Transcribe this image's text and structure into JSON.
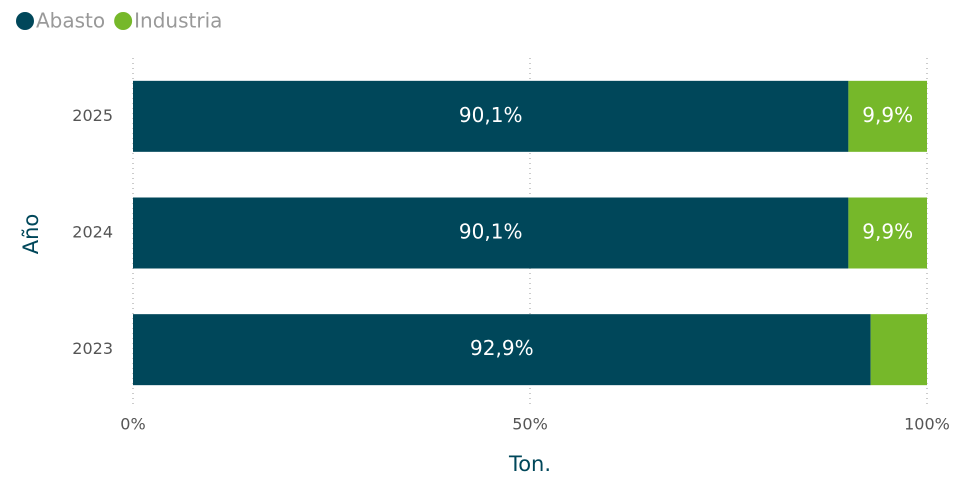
{
  "chart_data": {
    "type": "stacked-bar-horizontal",
    "x_label": "Ton.",
    "y_label": "Año",
    "categories": [
      "2025",
      "2024",
      "2023"
    ],
    "series": [
      {
        "name": "Abasto",
        "color": "#00475a",
        "values": [
          90.1,
          90.1,
          92.9
        ],
        "value_labels": [
          "90,1%",
          "90,1%",
          "92,9%"
        ]
      },
      {
        "name": "Industria",
        "color": "#76b82a",
        "values": [
          9.9,
          9.9,
          7.1
        ],
        "value_labels": [
          "9,9%",
          "9,9%",
          null
        ]
      }
    ],
    "xlim": [
      0,
      100
    ],
    "xticks": [
      {
        "value": 0,
        "label": "0%"
      },
      {
        "value": 50,
        "label": "50%"
      },
      {
        "value": 100,
        "label": "100%"
      }
    ],
    "grid": true,
    "legend": "top-left"
  }
}
